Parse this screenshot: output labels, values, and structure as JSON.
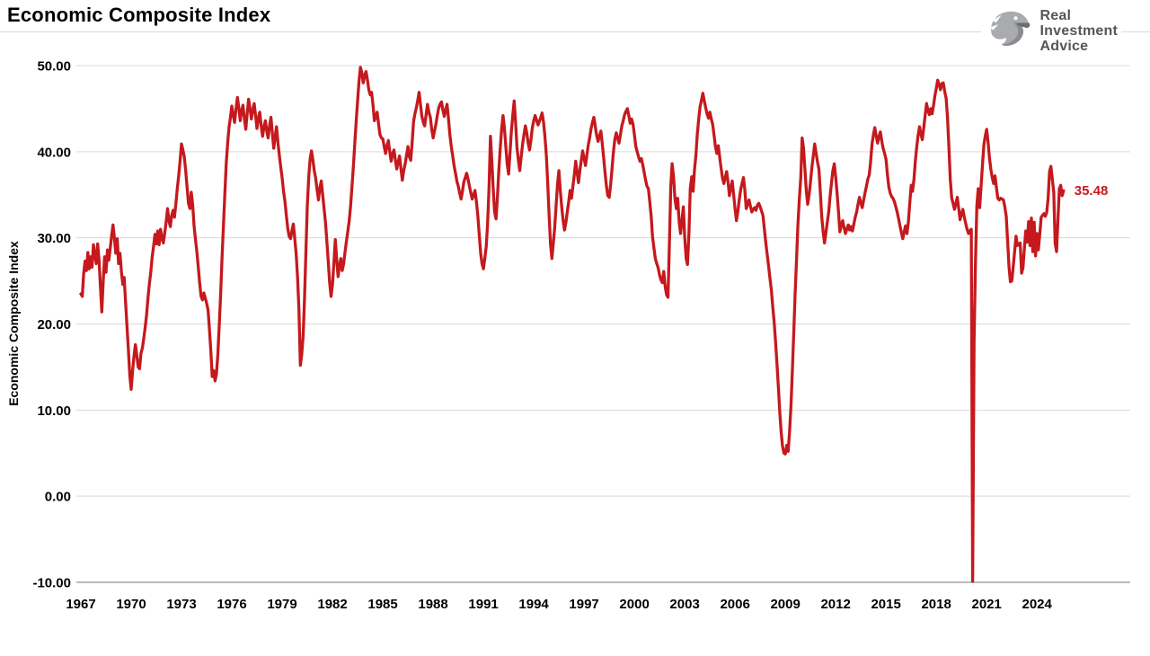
{
  "page_title": "Economic Composite Index",
  "logo": {
    "icon": "eagle-icon",
    "line1": "Real",
    "line2": "Investment",
    "line3": "Advice"
  },
  "colors": {
    "series": "#c5191d",
    "grid": "#d9d9d9",
    "axis_line": "#a6a6a6",
    "tick_text": "#000000",
    "logo_text": "#55565a",
    "divider": "#d9d9d9"
  },
  "chart_data": {
    "type": "line",
    "title": "Economic Composite Index",
    "ylabel": "Economic Composite Index",
    "xlabel": "",
    "ylim": [
      -10,
      50
    ],
    "grid": "horizontal",
    "legend": "none",
    "last_value_label": "35.48",
    "yticks": [
      {
        "value": 50,
        "label": "50.00"
      },
      {
        "value": 40,
        "label": "40.00"
      },
      {
        "value": 30,
        "label": "30.00"
      },
      {
        "value": 20,
        "label": "20.00"
      },
      {
        "value": 10,
        "label": "10.00"
      },
      {
        "value": 0,
        "label": "0.00"
      },
      {
        "value": -10,
        "label": "-10.00"
      }
    ],
    "xticks": [
      1967,
      1970,
      1973,
      1976,
      1979,
      1982,
      1985,
      1988,
      1991,
      1994,
      1997,
      2000,
      2003,
      2006,
      2009,
      2012,
      2015,
      2018,
      2021,
      2024
    ],
    "x_range": [
      1967.0,
      2025.58
    ],
    "series": [
      {
        "name": "Economic Composite Index",
        "color": "#c5191d",
        "start_year": 1967,
        "points_per_year": 12,
        "values": [
          23.5,
          23.2,
          25.8,
          27.3,
          26.2,
          28.3,
          26.4,
          27.8,
          26.6,
          29.2,
          28.0,
          27.0,
          29.3,
          27.5,
          24.3,
          21.4,
          25.0,
          27.8,
          26.0,
          28.6,
          27.4,
          28.8,
          30.2,
          31.5,
          30.0,
          28.2,
          29.9,
          27.0,
          28.2,
          26.1,
          24.6,
          25.4,
          22.5,
          19.8,
          17.0,
          14.0,
          12.4,
          14.6,
          16.2,
          17.6,
          16.4,
          15.0,
          14.8,
          16.6,
          17.2,
          18.3,
          19.6,
          21.0,
          23.0,
          24.6,
          26.0,
          27.7,
          29.0,
          30.4,
          29.3,
          30.8,
          29.2,
          31.0,
          30.0,
          29.4,
          30.6,
          31.8,
          33.4,
          32.0,
          31.3,
          32.6,
          33.2,
          32.4,
          34.0,
          35.8,
          37.2,
          39.0,
          40.9,
          40.2,
          39.4,
          37.8,
          35.9,
          34.0,
          33.4,
          35.3,
          33.8,
          31.4,
          29.8,
          28.4,
          26.6,
          24.8,
          23.2,
          22.8,
          23.6,
          23.0,
          22.4,
          21.6,
          19.4,
          16.8,
          13.9,
          14.6,
          13.4,
          14.2,
          16.5,
          19.8,
          23.5,
          27.6,
          31.4,
          35.2,
          38.6,
          41.0,
          42.8,
          44.0,
          45.3,
          44.2,
          43.4,
          45.0,
          46.3,
          45.1,
          43.6,
          44.8,
          45.4,
          43.8,
          42.6,
          44.4,
          46.1,
          45.0,
          43.8,
          44.9,
          45.6,
          44.2,
          42.7,
          43.9,
          44.6,
          43.0,
          41.8,
          42.9,
          43.6,
          42.4,
          41.6,
          43.0,
          44.0,
          42.2,
          40.4,
          41.8,
          42.9,
          41.0,
          39.6,
          38.2,
          37.0,
          35.4,
          34.2,
          32.6,
          31.1,
          30.2,
          29.9,
          30.8,
          31.6,
          30.0,
          28.2,
          25.4,
          21.8,
          15.2,
          16.4,
          18.6,
          22.8,
          28.4,
          33.6,
          37.0,
          39.2,
          40.1,
          39.0,
          37.8,
          36.9,
          35.6,
          34.4,
          35.8,
          36.6,
          35.0,
          33.4,
          31.8,
          29.6,
          27.2,
          24.8,
          23.2,
          24.6,
          27.0,
          29.8,
          27.6,
          25.5,
          26.8,
          27.6,
          26.2,
          27.0,
          28.4,
          29.6,
          30.8,
          32.0,
          33.8,
          36.0,
          38.4,
          41.0,
          43.6,
          46.0,
          48.2,
          49.8,
          49.2,
          48.0,
          48.8,
          49.3,
          48.4,
          47.2,
          46.6,
          46.9,
          45.4,
          43.6,
          44.1,
          44.6,
          43.2,
          42.0,
          41.6,
          41.5,
          40.6,
          39.8,
          40.7,
          41.3,
          40.0,
          38.9,
          39.8,
          40.2,
          39.0,
          38.0,
          38.8,
          39.5,
          38.0,
          36.7,
          37.8,
          38.6,
          39.6,
          40.6,
          39.4,
          39.0,
          41.0,
          43.5,
          44.4,
          45.1,
          46.0,
          46.9,
          45.4,
          44.1,
          43.4,
          43.0,
          44.3,
          45.5,
          44.6,
          44.0,
          42.6,
          41.6,
          42.4,
          43.2,
          44.2,
          45.1,
          45.5,
          45.8,
          44.8,
          44.1,
          44.9,
          45.5,
          43.8,
          42.0,
          40.6,
          39.5,
          38.4,
          37.5,
          36.6,
          36.0,
          35.2,
          34.5,
          35.4,
          36.5,
          37.0,
          37.5,
          36.8,
          36.0,
          35.2,
          34.5,
          35.0,
          35.5,
          34.2,
          32.5,
          30.4,
          28.2,
          27.0,
          26.4,
          27.6,
          29.0,
          31.6,
          35.8,
          41.8,
          39.0,
          35.6,
          33.0,
          32.2,
          34.6,
          37.8,
          40.4,
          42.6,
          44.2,
          42.8,
          40.6,
          38.6,
          37.4,
          39.8,
          42.4,
          44.3,
          45.9,
          43.4,
          40.5,
          39.0,
          37.8,
          39.4,
          40.8,
          42.0,
          43.0,
          42.2,
          41.0,
          40.2,
          41.4,
          42.8,
          43.6,
          44.2,
          43.7,
          43.1,
          43.5,
          44.0,
          44.5,
          43.4,
          41.8,
          39.6,
          36.4,
          32.6,
          29.2,
          27.6,
          29.4,
          31.2,
          33.8,
          36.2,
          37.8,
          35.4,
          33.6,
          32.0,
          30.9,
          31.8,
          33.0,
          34.2,
          35.5,
          34.6,
          36.0,
          37.3,
          38.9,
          37.6,
          36.4,
          37.8,
          39.0,
          40.1,
          39.2,
          38.4,
          39.6,
          40.8,
          41.6,
          42.7,
          43.4,
          44.0,
          43.0,
          41.9,
          41.2,
          41.8,
          42.4,
          41.0,
          39.3,
          37.6,
          36.0,
          34.9,
          34.7,
          36.2,
          38.0,
          40.0,
          41.4,
          42.2,
          41.6,
          41.0,
          42.0,
          43.0,
          43.6,
          44.3,
          44.7,
          45.0,
          44.2,
          43.3,
          43.8,
          43.2,
          42.0,
          40.6,
          40.0,
          39.4,
          38.9,
          39.2,
          38.5,
          37.6,
          36.7,
          36.0,
          35.7,
          34.2,
          32.5,
          30.1,
          28.8,
          27.6,
          27.0,
          26.5,
          25.7,
          25.1,
          24.8,
          26.1,
          24.4,
          23.4,
          23.1,
          29.0,
          36.0,
          38.6,
          37.1,
          34.6,
          33.4,
          34.6,
          31.9,
          30.5,
          32.0,
          33.6,
          30.1,
          27.6,
          26.9,
          30.5,
          35.7,
          37.1,
          35.4,
          37.9,
          39.6,
          42.0,
          43.8,
          45.2,
          46.0,
          46.8,
          45.9,
          45.1,
          44.4,
          43.9,
          44.6,
          43.8,
          43.2,
          41.9,
          40.6,
          39.8,
          40.7,
          39.4,
          38.1,
          37.0,
          36.3,
          37.0,
          37.7,
          36.4,
          34.9,
          35.8,
          36.6,
          35.0,
          33.4,
          32.0,
          33.0,
          34.4,
          35.6,
          36.3,
          37.0,
          35.6,
          33.4,
          33.9,
          34.4,
          33.7,
          33.0,
          33.3,
          33.5,
          33.2,
          33.8,
          34.0,
          33.6,
          33.1,
          32.6,
          31.0,
          29.4,
          28.1,
          26.7,
          25.3,
          23.9,
          22.0,
          20.2,
          18.0,
          15.4,
          12.6,
          9.8,
          7.4,
          5.8,
          5.0,
          4.9,
          5.9,
          5.2,
          7.5,
          10.5,
          14.5,
          19.0,
          23.5,
          27.5,
          31.5,
          34.5,
          37.0,
          41.6,
          40.4,
          38.0,
          35.4,
          33.9,
          35.0,
          36.5,
          38.2,
          39.6,
          40.9,
          39.8,
          38.8,
          38.0,
          35.4,
          32.5,
          30.8,
          29.4,
          30.6,
          31.8,
          33.0,
          34.8,
          36.4,
          37.8,
          38.6,
          37.0,
          35.2,
          33.0,
          30.7,
          31.4,
          32.0,
          31.2,
          30.5,
          31.0,
          31.5,
          30.9,
          31.3,
          30.8,
          31.6,
          32.4,
          33.0,
          33.9,
          34.7,
          34.0,
          33.5,
          34.4,
          35.2,
          36.0,
          36.8,
          37.3,
          38.8,
          40.9,
          42.0,
          42.8,
          41.8,
          41.0,
          41.8,
          42.3,
          41.2,
          40.4,
          39.8,
          39.1,
          37.4,
          35.9,
          35.2,
          34.8,
          34.6,
          34.2,
          33.6,
          33.0,
          32.2,
          31.4,
          30.6,
          29.9,
          30.7,
          31.4,
          30.5,
          31.9,
          34.0,
          36.1,
          35.4,
          36.8,
          38.9,
          40.6,
          41.9,
          42.9,
          42.0,
          41.4,
          42.8,
          44.2,
          45.6,
          44.8,
          44.3,
          45.0,
          44.4,
          45.4,
          46.5,
          47.4,
          48.3,
          47.8,
          47.2,
          47.9,
          48.0,
          47.0,
          46.2,
          44.0,
          40.5,
          36.8,
          34.6,
          34.0,
          33.3,
          34.0,
          34.7,
          33.4,
          32.1,
          32.8,
          33.3,
          32.4,
          31.7,
          31.0,
          30.5,
          30.8,
          31.0,
          -9.89,
          18.0,
          27.0,
          33.8,
          35.7,
          33.5,
          36.0,
          38.4,
          40.8,
          41.8,
          42.6,
          41.2,
          39.3,
          38.0,
          37.0,
          36.3,
          37.2,
          35.8,
          34.6,
          34.4,
          34.6,
          34.5,
          34.4,
          33.6,
          32.5,
          29.7,
          26.6,
          24.9,
          25.0,
          26.6,
          28.4,
          30.2,
          29.1,
          29.3,
          29.4,
          25.9,
          26.5,
          28.8,
          30.8,
          29.5,
          31.9,
          29.1,
          32.3,
          28.4,
          31.8,
          27.9,
          30.5,
          28.6,
          30.4,
          32.4,
          32.6,
          32.8,
          32.5,
          33.0,
          34.6,
          37.7,
          38.3,
          36.8,
          35.3,
          29.4,
          28.4,
          32.0,
          35.7,
          36.1,
          34.9,
          35.48
        ]
      }
    ]
  }
}
